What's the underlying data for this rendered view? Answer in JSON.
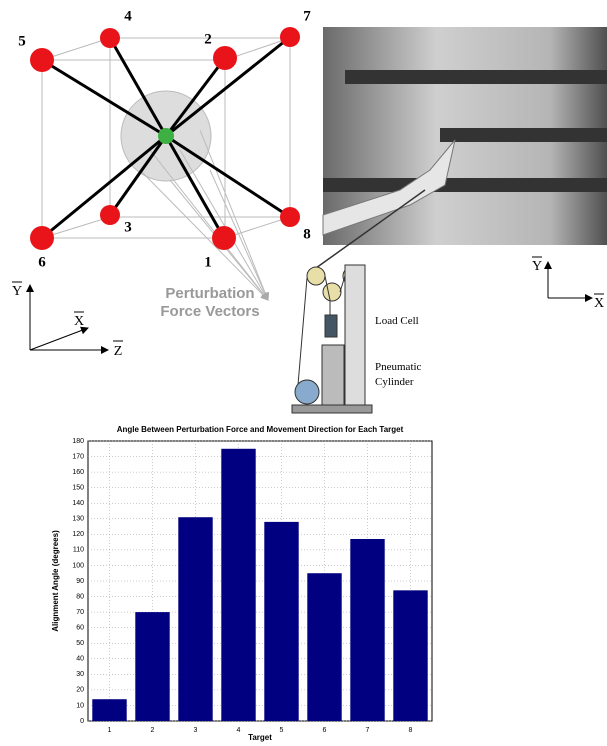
{
  "diagram": {
    "targets": [
      "1",
      "2",
      "3",
      "4",
      "5",
      "6",
      "7",
      "8"
    ],
    "annotation": [
      "Perturbation",
      "Force Vectors"
    ],
    "left_axes": {
      "y": "Y",
      "x": "X",
      "z": "Z"
    },
    "apparatus": {
      "load_cell": "Load Cell",
      "cylinder": [
        "Pneumatic",
        "Cylinder"
      ]
    },
    "right_axes": {
      "y": "Y",
      "x": "X"
    }
  },
  "chart_data": {
    "type": "bar",
    "title": "Angle Between Perturbation Force and Movement Direction for Each Target",
    "x_label": "Target",
    "y_label": "Alignment Angle (degrees)",
    "categories": [
      "1",
      "2",
      "3",
      "4",
      "5",
      "6",
      "7",
      "8"
    ],
    "values": [
      14,
      70,
      131,
      175,
      128,
      95,
      117,
      84
    ],
    "color": "#000080",
    "ylim": [
      0,
      180
    ],
    "yticks": [
      0,
      10,
      20,
      30,
      40,
      50,
      60,
      70,
      80,
      90,
      100,
      110,
      120,
      130,
      140,
      150,
      160,
      170,
      180
    ],
    "grid": true
  }
}
